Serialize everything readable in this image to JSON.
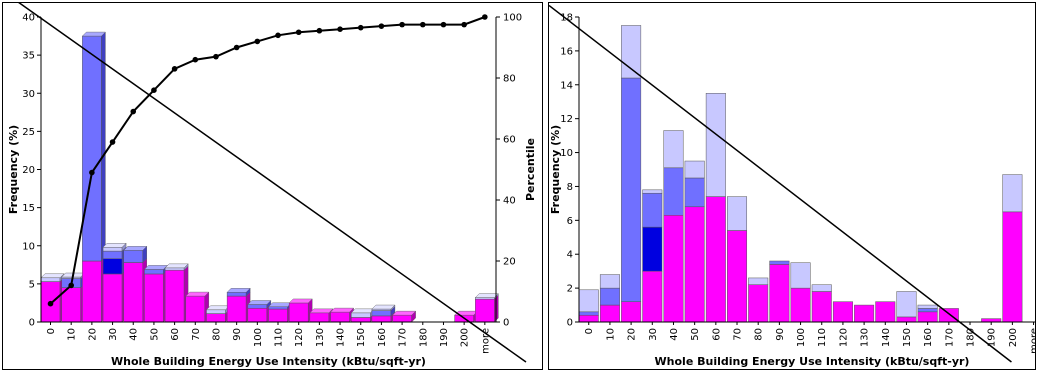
{
  "colors": {
    "magenta": "#ff00ff",
    "magenta_top": "#ff66ff",
    "magenta_side": "#b000b0",
    "medium_blue": "#7070ff",
    "medium_blue_top": "#a8a8ff",
    "medium_blue_side": "#4040c0",
    "dark_blue": "#0000e0",
    "light_lavender": "#c8c8ff",
    "light_lavender_top": "#e4e4ff",
    "light_lavender_side": "#9090cc",
    "line": "#000000"
  },
  "chart_data": [
    {
      "type": "bar",
      "stacked": true,
      "bar_style": "3d",
      "categories": [
        "0",
        "10",
        "20",
        "30",
        "40",
        "50",
        "60",
        "70",
        "80",
        "90",
        "100",
        "110",
        "120",
        "130",
        "140",
        "150",
        "160",
        "170",
        "180",
        "190",
        "200",
        "more"
      ],
      "xlabel": "Whole Building Energy Use Intensity (kBtu/sqft-yr)",
      "ylabel": "Frequency (%)",
      "y2label": "Percentile",
      "ylim": [
        0,
        40
      ],
      "yticks": [
        0,
        5,
        10,
        15,
        20,
        25,
        30,
        35,
        40
      ],
      "y2lim": [
        0,
        100
      ],
      "y2ticks": [
        0,
        20,
        40,
        60,
        80,
        100
      ],
      "grid": false,
      "series": [
        {
          "color_key": "magenta",
          "values": [
            5.3,
            4.5,
            8.0,
            6.3,
            7.8,
            6.3,
            6.8,
            3.4,
            1.1,
            3.4,
            1.8,
            1.7,
            2.5,
            1.2,
            1.3,
            0.6,
            0.8,
            0.9,
            0,
            0,
            0.9,
            3.0
          ]
        },
        {
          "color_key": "dark_blue",
          "values": [
            0,
            0,
            0,
            2.0,
            0,
            0,
            0,
            0,
            0,
            0,
            0,
            0,
            0,
            0,
            0,
            0,
            0,
            0,
            0,
            0,
            0,
            0
          ]
        },
        {
          "color_key": "medium_blue",
          "values": [
            0,
            1.2,
            29.5,
            1.0,
            1.6,
            0.6,
            0,
            0,
            0,
            0.5,
            0.5,
            0.3,
            0,
            0,
            0,
            0,
            0.7,
            0,
            0,
            0,
            0,
            0
          ]
        },
        {
          "color_key": "light_lavender",
          "values": [
            0.5,
            0.2,
            0,
            0.5,
            0,
            0,
            0.3,
            0,
            0.5,
            0,
            0,
            0,
            0,
            0,
            0,
            0.6,
            0.2,
            0,
            0,
            0,
            0,
            0.2
          ]
        }
      ],
      "percentile_line": {
        "x_categories": [
          "0",
          "10",
          "20",
          "30",
          "40",
          "50",
          "60",
          "70",
          "80",
          "90",
          "100",
          "110",
          "120",
          "130",
          "140",
          "150",
          "160",
          "170",
          "180",
          "190",
          "200",
          "more"
        ],
        "values": [
          6,
          12,
          49,
          59,
          69,
          76,
          83,
          86,
          87,
          90,
          92,
          94,
          95,
          95.5,
          96,
          96.5,
          97,
          97.5,
          97.5,
          97.5,
          97.5,
          100
        ]
      },
      "diagonal": {
        "from": [
          0,
          40
        ],
        "to": [
          "more",
          0
        ]
      }
    },
    {
      "type": "bar",
      "stacked": true,
      "bar_style": "flat",
      "categories": [
        "0",
        "10",
        "20",
        "30",
        "40",
        "50",
        "60",
        "70",
        "80",
        "90",
        "100",
        "110",
        "120",
        "130",
        "140",
        "150",
        "160",
        "170",
        "180",
        "190",
        "200",
        "more"
      ],
      "xlabel": "Whole Building Energy Use Intensity (kBtu/sqft-yr)",
      "ylabel": "Frequency (%)",
      "ylim": [
        0,
        18
      ],
      "yticks": [
        0,
        2,
        4,
        6,
        8,
        10,
        12,
        14,
        16,
        18
      ],
      "grid": false,
      "series": [
        {
          "color_key": "magenta",
          "values": [
            0.4,
            1.0,
            1.2,
            3.0,
            6.3,
            6.8,
            7.4,
            5.4,
            2.2,
            3.4,
            2.0,
            1.8,
            1.2,
            1.0,
            1.2,
            0.3,
            0.6,
            0.8,
            0,
            0.2,
            6.5,
            0
          ]
        },
        {
          "color_key": "dark_blue",
          "values": [
            0,
            0,
            0,
            2.6,
            0,
            0,
            0,
            0,
            0,
            0,
            0,
            0,
            0,
            0,
            0,
            0,
            0,
            0,
            0,
            0,
            0,
            0
          ]
        },
        {
          "color_key": "medium_blue",
          "values": [
            0.2,
            1.0,
            13.2,
            2.0,
            2.8,
            1.7,
            0,
            0,
            0,
            0.2,
            0,
            0,
            0,
            0,
            0,
            0,
            0.2,
            0,
            0,
            0,
            0,
            0
          ]
        },
        {
          "color_key": "light_lavender",
          "values": [
            1.3,
            0.8,
            3.1,
            0.2,
            2.2,
            1.0,
            6.1,
            2.0,
            0.4,
            0,
            1.5,
            0.4,
            0,
            0,
            0,
            1.5,
            0.2,
            0,
            0,
            0,
            2.2,
            0
          ]
        }
      ],
      "diagonal": {
        "from": [
          0,
          17.5
        ],
        "to": [
          "180",
          0
        ]
      }
    }
  ]
}
